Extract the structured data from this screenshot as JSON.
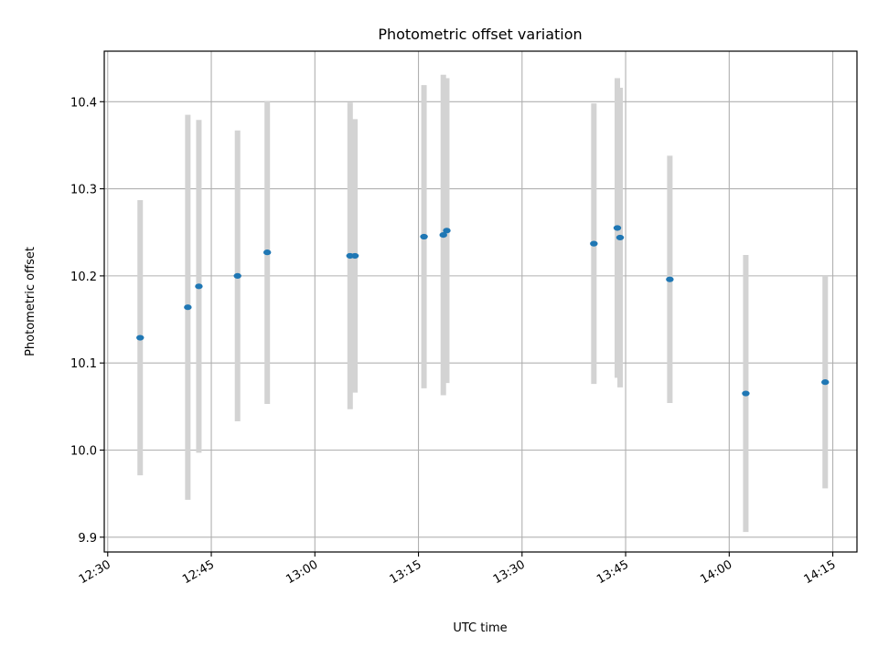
{
  "chart_data": {
    "type": "scatter",
    "title": "Photometric offset variation",
    "xlabel": "UTC time",
    "ylabel": "Photometric offset",
    "x_unit": "UTC time (HH:MM)",
    "xlim": [
      "12:29.5",
      "14:18.5"
    ],
    "ylim": [
      9.883,
      10.458
    ],
    "x_ticks": [
      "12:30",
      "12:45",
      "13:00",
      "13:15",
      "13:30",
      "13:45",
      "14:00",
      "14:15"
    ],
    "y_ticks": [
      9.9,
      10.0,
      10.1,
      10.2,
      10.3,
      10.4
    ],
    "y_tick_labels": [
      "9.9",
      "10.0",
      "10.1",
      "10.2",
      "10.3",
      "10.4"
    ],
    "grid": true,
    "colors": {
      "point": "#1f77b4",
      "errorbar": "#d3d3d3",
      "grid": "#b0b0b0"
    },
    "series": [
      {
        "points": [
          {
            "x": "12:34.7",
            "y": 10.129,
            "err": 0.158
          },
          {
            "x": "12:41.6",
            "y": 10.164,
            "err": 0.221
          },
          {
            "x": "12:43.2",
            "y": 10.188,
            "err": 0.191
          },
          {
            "x": "12:48.8",
            "y": 10.2,
            "err": 0.167
          },
          {
            "x": "12:53.1",
            "y": 10.227,
            "err": 0.174
          },
          {
            "x": "13:05.1",
            "y": 10.223,
            "err": 0.176
          },
          {
            "x": "13:05.8",
            "y": 10.223,
            "err": 0.157
          },
          {
            "x": "13:15.8",
            "y": 10.245,
            "err": 0.174
          },
          {
            "x": "13:18.6",
            "y": 10.247,
            "err": 0.184
          },
          {
            "x": "13:19.1",
            "y": 10.252,
            "err": 0.175
          },
          {
            "x": "13:40.4",
            "y": 10.237,
            "err": 0.161
          },
          {
            "x": "13:43.8",
            "y": 10.255,
            "err": 0.172
          },
          {
            "x": "13:44.2",
            "y": 10.244,
            "err": 0.172
          },
          {
            "x": "13:51.4",
            "y": 10.196,
            "err": 0.142
          },
          {
            "x": "14:02.4",
            "y": 10.065,
            "err": 0.159
          },
          {
            "x": "14:13.9",
            "y": 10.078,
            "err": 0.122
          }
        ]
      }
    ]
  }
}
